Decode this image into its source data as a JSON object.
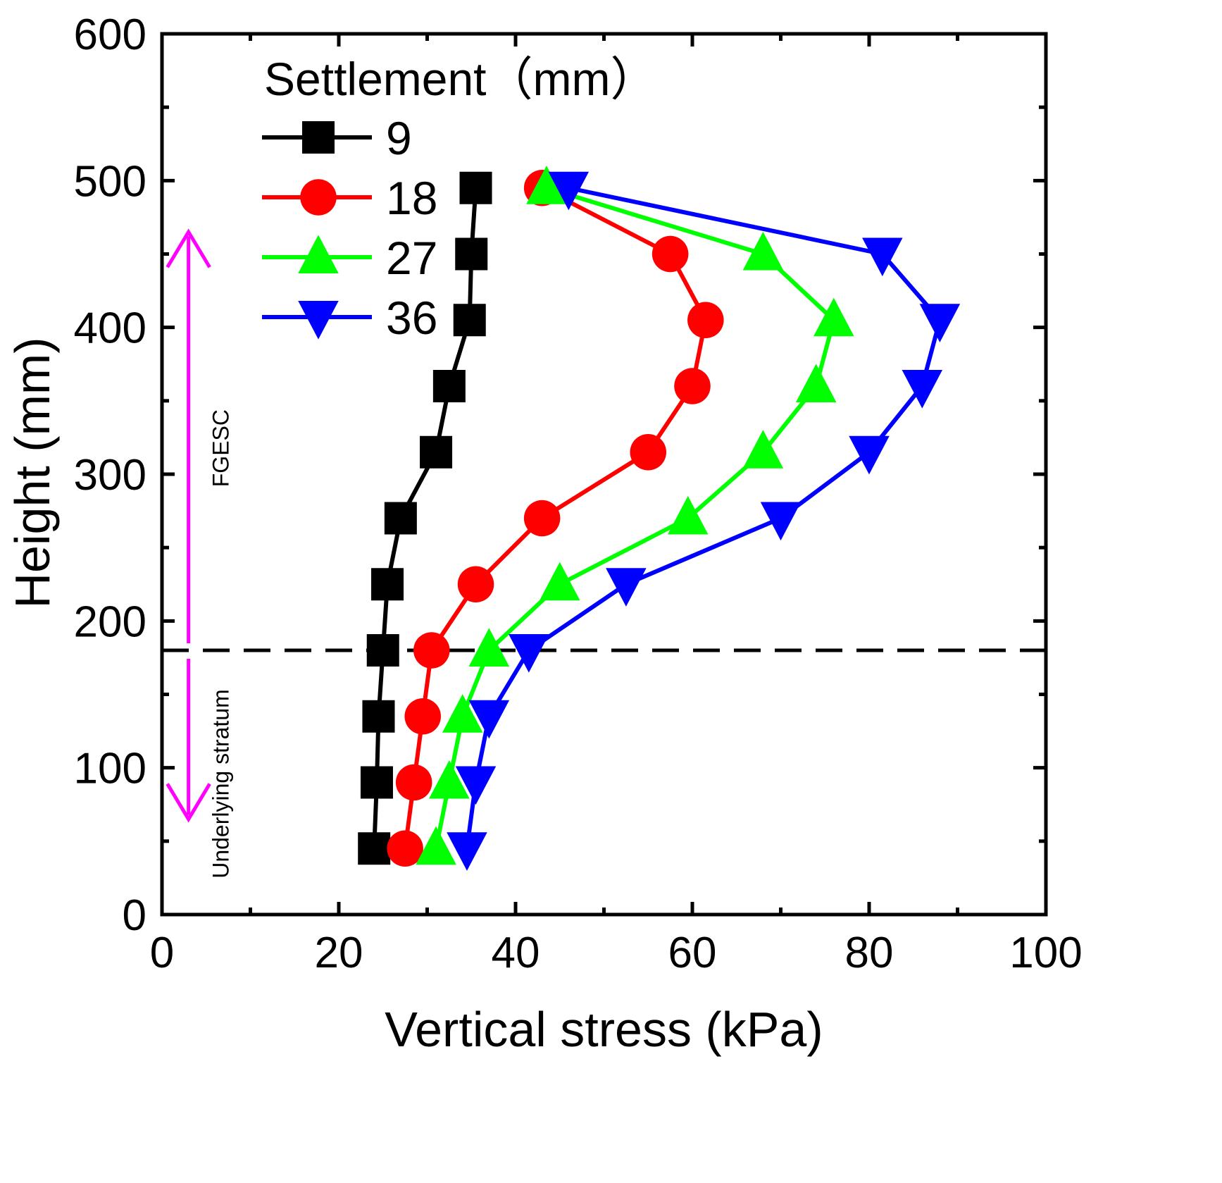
{
  "chart_data": {
    "type": "line",
    "xlabel": "Vertical stress  (kPa)",
    "ylabel": "Height (mm)",
    "xlim": [
      0,
      100
    ],
    "ylim": [
      0,
      600
    ],
    "xticks": [
      "0",
      "20",
      "40",
      "60",
      "80",
      "100"
    ],
    "yticks": [
      "0",
      "100",
      "200",
      "300",
      "400",
      "500",
      "600"
    ],
    "legend_title": "Settlement（mm）",
    "legend_position": "top-left",
    "series": [
      {
        "name": "9",
        "color": "#000000",
        "marker": "square",
        "x": [
          35.5,
          35.0,
          34.8,
          32.5,
          31.0,
          27.0,
          25.5,
          25.0,
          24.5,
          24.3,
          24.0
        ],
        "y": [
          495,
          450,
          405,
          360,
          315,
          270,
          225,
          180,
          135,
          90,
          45
        ]
      },
      {
        "name": "18",
        "color": "#ff0000",
        "marker": "circle",
        "x": [
          43.0,
          57.5,
          61.5,
          60.0,
          55.0,
          43.0,
          35.5,
          30.5,
          29.5,
          28.5,
          27.5
        ],
        "y": [
          495,
          450,
          405,
          360,
          315,
          270,
          225,
          180,
          135,
          90,
          45
        ]
      },
      {
        "name": "27",
        "color": "#00ff00",
        "marker": "triangle-up",
        "x": [
          43.5,
          68.0,
          76.0,
          74.0,
          68.0,
          59.5,
          45.0,
          37.0,
          34.0,
          32.5,
          31.0
        ],
        "y": [
          495,
          450,
          405,
          360,
          315,
          270,
          225,
          180,
          135,
          90,
          45
        ]
      },
      {
        "name": "36",
        "color": "#0000ff",
        "marker": "triangle-down",
        "x": [
          46.0,
          81.5,
          88.0,
          86.0,
          80.0,
          70.0,
          52.5,
          41.5,
          37.0,
          35.5,
          34.5
        ],
        "y": [
          495,
          450,
          405,
          360,
          315,
          270,
          225,
          180,
          135,
          90,
          45
        ]
      }
    ],
    "annotations": {
      "boundary_height": 180,
      "arrow_x": 3,
      "arrow_up_to": 465,
      "arrow_down_to": 65,
      "arrow_color": "#ff00ff",
      "upper_label": "FGESC",
      "lower_label": "Underlying stratum"
    }
  }
}
